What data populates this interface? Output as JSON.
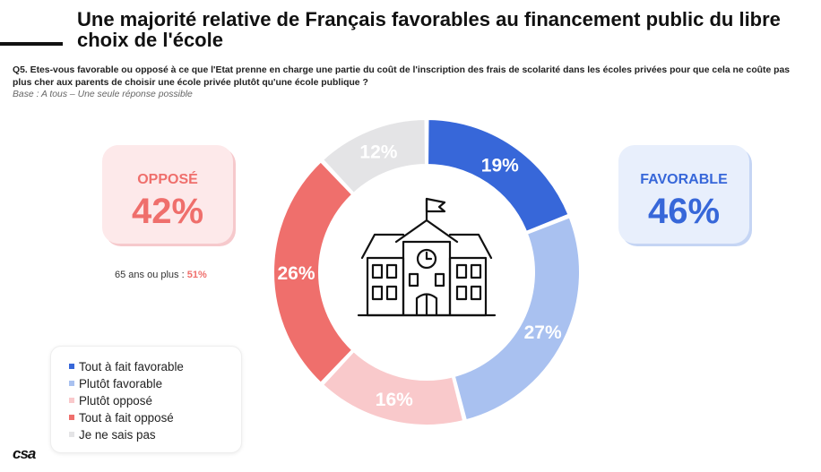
{
  "title": "Une majorité relative de Français favorables au financement public du libre choix de l'école",
  "question": "Q5. Etes-vous favorable ou opposé à ce que l'Etat prenne en charge une partie du coût de l'inscription des frais de scolarité dans les écoles privées pour que cela ne coûte pas plus cher aux parents de choisir une école privée plutôt qu'une école publique ?",
  "base": "Base : A tous – Une seule réponse possible",
  "opposed": {
    "label": "OPPOSÉ",
    "value": "42%"
  },
  "favorable": {
    "label": "FAVORABLE",
    "value": "46%"
  },
  "note": {
    "text": "65 ans ou plus : ",
    "value": "51%"
  },
  "logo": "csa",
  "colors": {
    "tout_a_fait_favorable": "#3767d9",
    "plutot_favorable": "#a9c1f0",
    "plutot_oppose": "#f9c9cb",
    "tout_a_fait_oppose": "#ef6f6c",
    "ne_sais_pas": "#e4e4e6"
  },
  "chart_data": {
    "type": "pie",
    "donut": true,
    "start": "top, clockwise",
    "slices": [
      {
        "name": "Tout à fait favorable",
        "value": 19,
        "label": "19%",
        "color": "#3767d9"
      },
      {
        "name": "Plutôt favorable",
        "value": 27,
        "label": "27%",
        "color": "#a9c1f0"
      },
      {
        "name": "Plutôt opposé",
        "value": 16,
        "label": "16%",
        "color": "#f9c9cb"
      },
      {
        "name": "Tout à fait opposé",
        "value": 26,
        "label": "26%",
        "color": "#ef6f6c"
      },
      {
        "name": "Je ne sais pas",
        "value": 12,
        "label": "12%",
        "color": "#e4e4e6"
      }
    ],
    "legend": [
      {
        "name": "Tout à fait favorable",
        "color": "#3767d9"
      },
      {
        "name": "Plutôt favorable",
        "color": "#a9c1f0"
      },
      {
        "name": "Plutôt opposé",
        "color": "#f9c9cb"
      },
      {
        "name": "Tout à fait opposé",
        "color": "#ef6f6c"
      },
      {
        "name": "Je ne sais pas",
        "color": "#e4e4e6"
      }
    ],
    "legend_position": "bottom-left",
    "center_icon": "school-building-icon"
  }
}
